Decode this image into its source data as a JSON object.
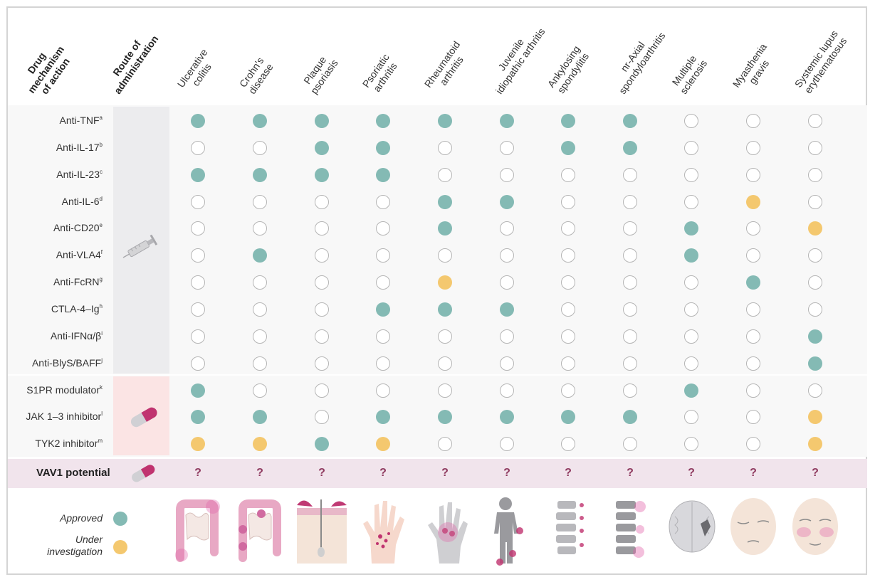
{
  "headers": {
    "mechanism": [
      "Drug",
      "mechanism",
      "of action"
    ],
    "route": [
      "Route of",
      "administration"
    ],
    "diseases": [
      [
        "Ulcerative",
        "colitis"
      ],
      [
        "Crohn's",
        "disease"
      ],
      [
        "Plaque",
        "psoriasis"
      ],
      [
        "Psoriatic",
        "arthritis"
      ],
      [
        "Rheumatoid",
        "arthritis"
      ],
      [
        "Juvenile",
        "idiopathic arthritis"
      ],
      [
        "Ankylosing",
        "spondylitis"
      ],
      [
        "nr-Axial",
        "spondyloarthritis"
      ],
      [
        "Multiple",
        "sclerosis"
      ],
      [
        "Myasthenia",
        "gravis"
      ],
      [
        "Systemic lupus",
        "erythematosus"
      ]
    ]
  },
  "rows": [
    {
      "label": "Anti-TNF",
      "sup": "a",
      "route": "injection",
      "status": [
        "A",
        "A",
        "A",
        "A",
        "A",
        "A",
        "A",
        "A",
        "-",
        "-",
        "-"
      ]
    },
    {
      "label": "Anti-IL-17",
      "sup": "b",
      "route": "injection",
      "status": [
        "-",
        "-",
        "A",
        "A",
        "-",
        "-",
        "A",
        "A",
        "-",
        "-",
        "-"
      ]
    },
    {
      "label": "Anti-IL-23",
      "sup": "c",
      "route": "injection",
      "status": [
        "A",
        "A",
        "A",
        "A",
        "-",
        "-",
        "-",
        "-",
        "-",
        "-",
        "-"
      ]
    },
    {
      "label": "Anti-IL-6",
      "sup": "d",
      "route": "injection",
      "status": [
        "-",
        "-",
        "-",
        "-",
        "A",
        "A",
        "-",
        "-",
        "-",
        "I",
        "-"
      ]
    },
    {
      "label": "Anti-CD20",
      "sup": "e",
      "route": "injection",
      "status": [
        "-",
        "-",
        "-",
        "-",
        "A",
        "-",
        "-",
        "-",
        "A",
        "-",
        "I"
      ]
    },
    {
      "label": "Anti-VLA4",
      "sup": "f",
      "route": "injection",
      "status": [
        "-",
        "A",
        "-",
        "-",
        "-",
        "-",
        "-",
        "-",
        "A",
        "-",
        "-"
      ]
    },
    {
      "label": "Anti-FcRN",
      "sup": "g",
      "route": "injection",
      "status": [
        "-",
        "-",
        "-",
        "-",
        "I",
        "-",
        "-",
        "-",
        "-",
        "A",
        "-"
      ]
    },
    {
      "label": "CTLA-4–Ig",
      "sup": "h",
      "route": "injection",
      "status": [
        "-",
        "-",
        "-",
        "A",
        "A",
        "A",
        "-",
        "-",
        "-",
        "-",
        "-"
      ]
    },
    {
      "label": "Anti-IFNα/β",
      "sup": "i",
      "route": "injection",
      "status": [
        "-",
        "-",
        "-",
        "-",
        "-",
        "-",
        "-",
        "-",
        "-",
        "-",
        "A"
      ]
    },
    {
      "label": "Anti-BlyS/BAFF",
      "sup": "j",
      "route": "injection",
      "status": [
        "-",
        "-",
        "-",
        "-",
        "-",
        "-",
        "-",
        "-",
        "-",
        "-",
        "A"
      ]
    },
    {
      "label": "S1PR modulator",
      "sup": "k",
      "route": "oral",
      "status": [
        "A",
        "-",
        "-",
        "-",
        "-",
        "-",
        "-",
        "-",
        "A",
        "-",
        "-"
      ]
    },
    {
      "label": "JAK 1–3 inhibitor",
      "sup": "l",
      "route": "oral",
      "status": [
        "A",
        "A",
        "-",
        "A",
        "A",
        "A",
        "A",
        "A",
        "-",
        "-",
        "I"
      ]
    },
    {
      "label": "TYK2 inhibitor",
      "sup": "m",
      "route": "oral",
      "status": [
        "I",
        "I",
        "A",
        "I",
        "-",
        "-",
        "-",
        "-",
        "-",
        "-",
        "I"
      ]
    }
  ],
  "vav1": {
    "label": "VAV1 potential",
    "marks": [
      "?",
      "?",
      "?",
      "?",
      "?",
      "?",
      "?",
      "?",
      "?",
      "?",
      "?"
    ]
  },
  "legend": {
    "approved": "Approved",
    "investigation": [
      "Under",
      "investigation"
    ]
  },
  "colors": {
    "approved": "#84bab4",
    "investigation": "#f4c86f",
    "question": "#8f3a5f",
    "injection_bg": "#ececee",
    "oral_bg": "#fbe4e4",
    "vav_bg": "#f1e4ec"
  },
  "icons": {
    "injection": "syringe-icon",
    "oral": "capsule-icon",
    "diseases": [
      "colon-illustration",
      "intestine-illustration",
      "skin-illustration",
      "psoriatic-hand-illustration",
      "rheumatoid-hand-illustration",
      "child-joints-illustration",
      "spine-illustration",
      "axial-spine-illustration",
      "brain-illustration",
      "face-ptosis-illustration",
      "face-rash-illustration"
    ]
  }
}
